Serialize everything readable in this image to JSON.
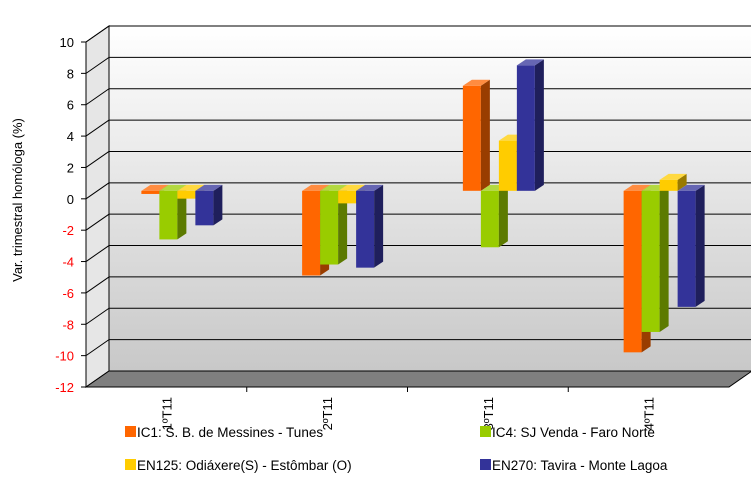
{
  "chart_data": {
    "type": "bar",
    "style": "3d-clustered-column",
    "ylabel": "Var. trimestral homóloga (%)",
    "xlabel": "",
    "title": "",
    "ylim": [
      -12,
      10
    ],
    "ytick_step": 2,
    "grid": true,
    "legend_position": "bottom",
    "categories": [
      "1ºT11",
      "2ºT11",
      "3ºT11",
      "4ºT11"
    ],
    "series": [
      {
        "name": "IC1: S. B. de Messines - Tunes",
        "color": "#ff6600",
        "values": [
          -0.2,
          -5.4,
          6.7,
          -10.3
        ]
      },
      {
        "name": "IC4: SJ Venda - Faro Norte",
        "color": "#99cc00",
        "values": [
          -3.1,
          -4.7,
          -3.6,
          -9.0
        ]
      },
      {
        "name": "EN125: Odiáxere(S) - Estômbar (O)",
        "color": "#ffcc00",
        "values": [
          -0.5,
          -0.8,
          3.2,
          0.7
        ]
      },
      {
        "name": "EN270: Tavira - Monte Lagoa",
        "color": "#333399",
        "values": [
          -2.2,
          -4.9,
          8.0,
          -7.4
        ]
      }
    ]
  }
}
